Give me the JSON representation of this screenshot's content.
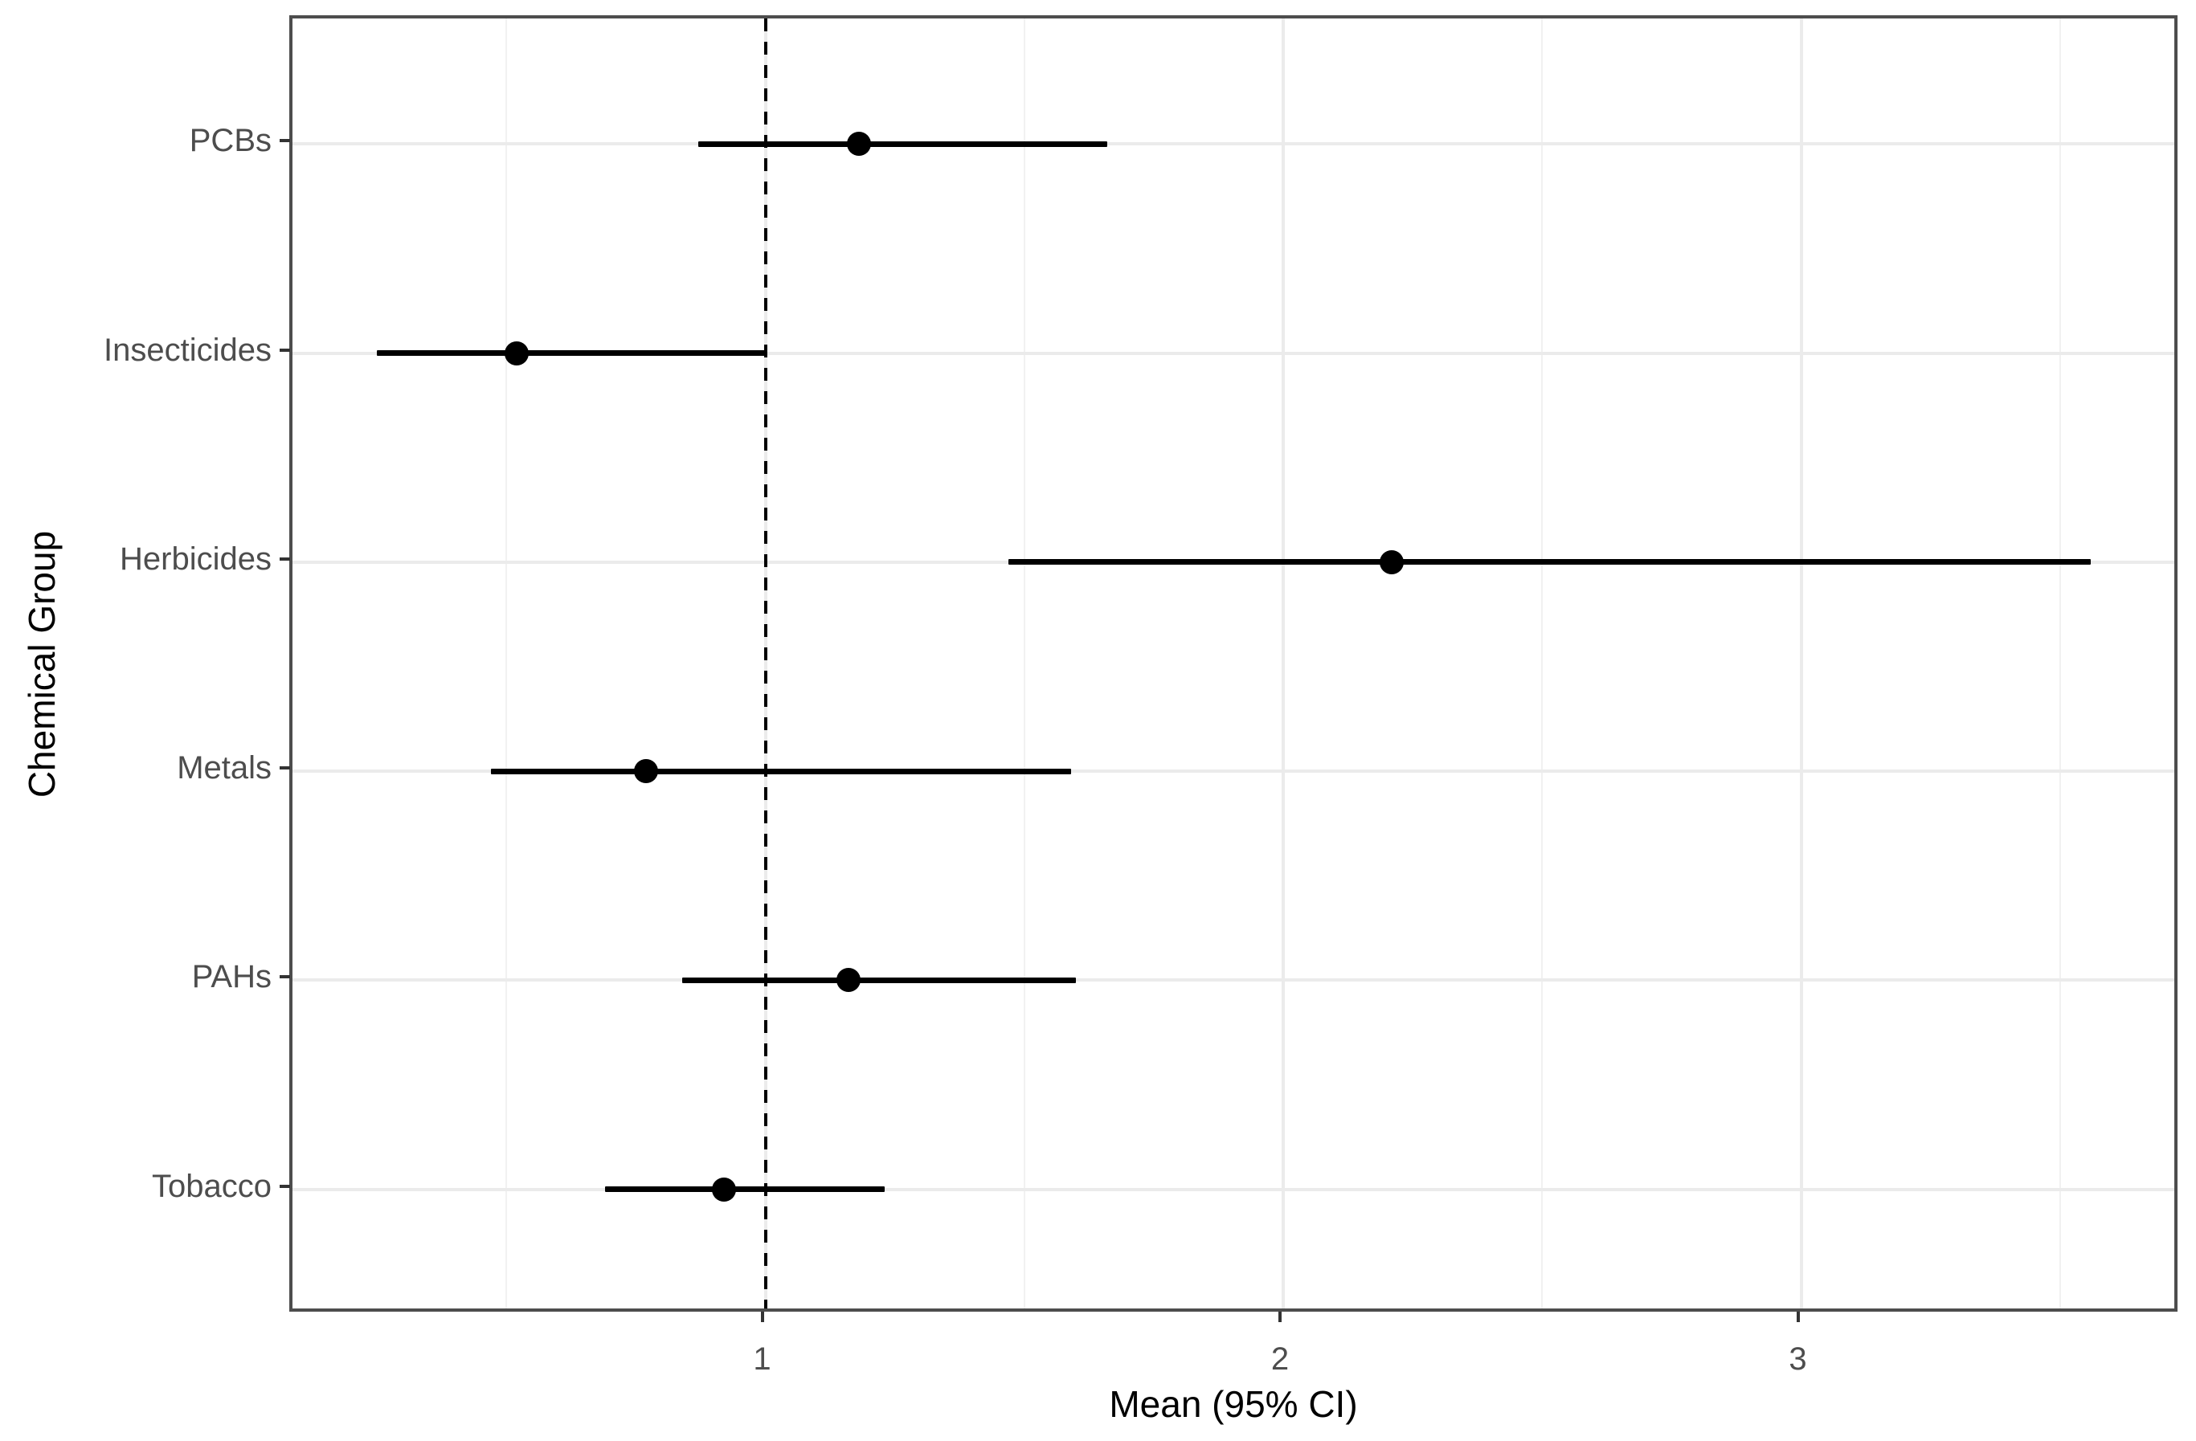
{
  "chart_data": {
    "type": "scatter",
    "subtype": "forest-plot-with-error-bars",
    "title": "",
    "xlabel": "Mean (95% CI)",
    "ylabel": "Chemical Group",
    "categories": [
      "PCBs",
      "Insecticides",
      "Herbicides",
      "Metals",
      "PAHs",
      "Tobacco"
    ],
    "series": [
      {
        "name": "Mean (95% CI)",
        "means": [
          1.18,
          0.52,
          2.21,
          0.77,
          1.16,
          0.92
        ],
        "ci_low": [
          0.87,
          0.25,
          1.47,
          0.47,
          0.84,
          0.69
        ],
        "ci_high": [
          1.66,
          1.0,
          3.56,
          1.59,
          1.6,
          1.23
        ]
      }
    ],
    "x_ticks": [
      "1",
      "2",
      "3"
    ],
    "x_tick_values": [
      1,
      2,
      3
    ],
    "x_minor_gridline_values": [
      0.5,
      1.5,
      2.5,
      3.5
    ],
    "xlim": [
      0.09,
      3.73
    ],
    "reference_line": {
      "x": 1,
      "style": "dashed",
      "color": "#000000"
    },
    "grid": "on",
    "legend_position": "none"
  },
  "colors": {
    "point": "#000000",
    "ci_line": "#000000",
    "panel_border": "#4d4d4d",
    "tick_mark": "#333333",
    "axis_text": "#4d4d4d",
    "axis_title": "#000000",
    "grid_major": "#ebebeb",
    "grid_minor": "#f1f1f1",
    "background": "#ffffff"
  }
}
